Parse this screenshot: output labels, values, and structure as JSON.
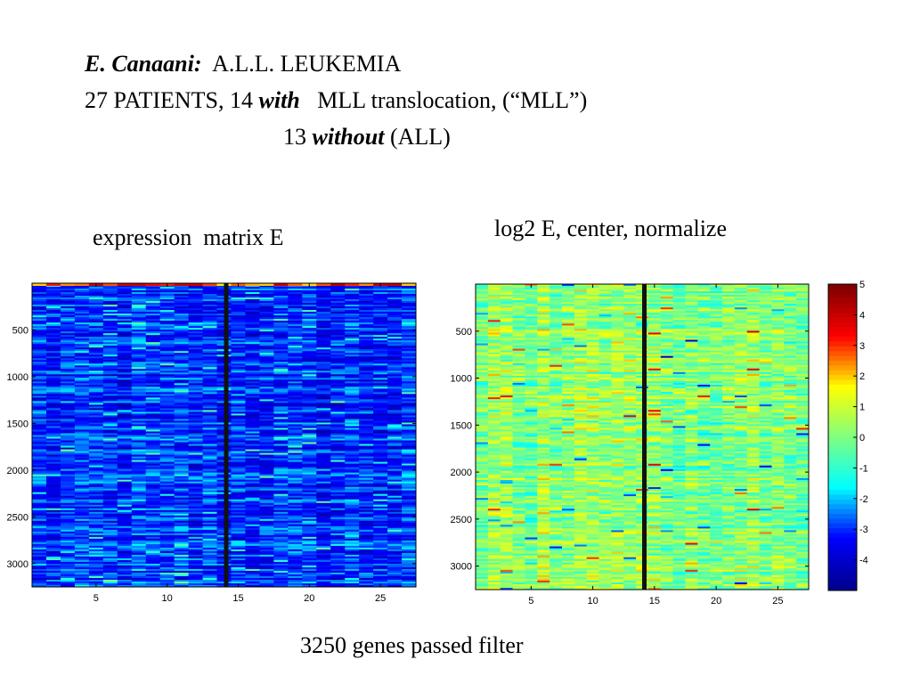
{
  "header": {
    "line1_author": "E. Canaani:",
    "line1_rest": "A.L.L. LEUKEMIA",
    "line2_a": "27 PATIENTS, 14",
    "line2_with": "with",
    "line2_b": "MLL translocation, (“MLL”)",
    "line3_a": "13",
    "line3_without": "without",
    "line3_b": "(ALL)"
  },
  "labels": {
    "left_title": "expression  matrix E",
    "right_title": "log2 E, center, normalize",
    "footer": "3250 genes passed filter"
  },
  "chart_data": [
    {
      "type": "heatmap",
      "title": "expression  matrix E",
      "rows": 3250,
      "columns": 27,
      "separator_after_column": 14,
      "x_ticks": [
        5,
        10,
        15,
        20,
        25
      ],
      "y_ticks": [
        500,
        1000,
        1500,
        2000,
        2500,
        3000
      ],
      "colormap": "jet",
      "dominant_color": "#1a3cd6"
    },
    {
      "type": "heatmap",
      "title": "log2 E, center, normalize",
      "rows": 3250,
      "columns": 27,
      "separator_after_column": 14,
      "x_ticks": [
        5,
        10,
        15,
        20,
        25
      ],
      "y_ticks": [
        500,
        1000,
        1500,
        2000,
        2500,
        3000
      ],
      "colormap": "jet",
      "dominant_color": "#7ad94e",
      "colorbar": {
        "ticks": [
          5,
          4,
          3,
          2,
          1,
          0,
          -1,
          -2,
          -3,
          -4
        ],
        "range": [
          -5,
          5
        ]
      }
    }
  ],
  "colors": {
    "jet": [
      "#00008f",
      "#0000ff",
      "#00ffff",
      "#80ff80",
      "#ffff00",
      "#ff0000",
      "#800000"
    ]
  }
}
